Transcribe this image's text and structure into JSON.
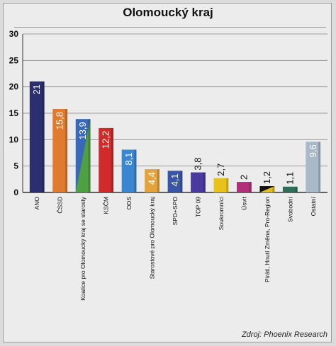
{
  "chart_data": {
    "type": "bar",
    "title": "Olomoucký kraj",
    "categories": [
      "ANO",
      "ČSSD",
      "Koalice pro Olomoucký kraj se starosty",
      "KSČM",
      "ODS",
      "Starostové pro Olomoucký kraj",
      "SPD+SPO",
      "TOP 09",
      "Soukromníci",
      "Úsvit",
      "Piráti, Hnutí Změna, Pro-Region",
      "Svobodní",
      "Ostatní"
    ],
    "values": [
      21,
      15.8,
      13.9,
      12.2,
      8.1,
      4.4,
      4.1,
      3.8,
      2.7,
      2,
      1.2,
      1.1,
      9.6
    ],
    "value_labels": [
      "21",
      "15,8",
      "13,9",
      "12,2",
      "8,1",
      "4,4",
      "4,1",
      "3,8",
      "2,7",
      "2",
      "1,2",
      "1,1",
      "9,6"
    ],
    "colors": [
      "#2b2f6e",
      "#e07a2e",
      "#3a68b8",
      "#d12a2a",
      "#3a86d0",
      "#e3a23a",
      "#3a55a8",
      "#4a3aa0",
      "#e8c21a",
      "#b0307a",
      "#111111",
      "#2f6f5a",
      "#a9b9c8"
    ],
    "secondary_colors": {
      "2": "#4fa043",
      "10": "#e0c020"
    },
    "ylim": [
      0,
      30
    ],
    "yticks": [
      0,
      5,
      10,
      15,
      20,
      25,
      30
    ],
    "ytick_labels": [
      "0",
      "5",
      "10",
      "15",
      "20",
      "25",
      "30"
    ],
    "grid": true
  },
  "source": "Zdroj: Phoenix Research"
}
